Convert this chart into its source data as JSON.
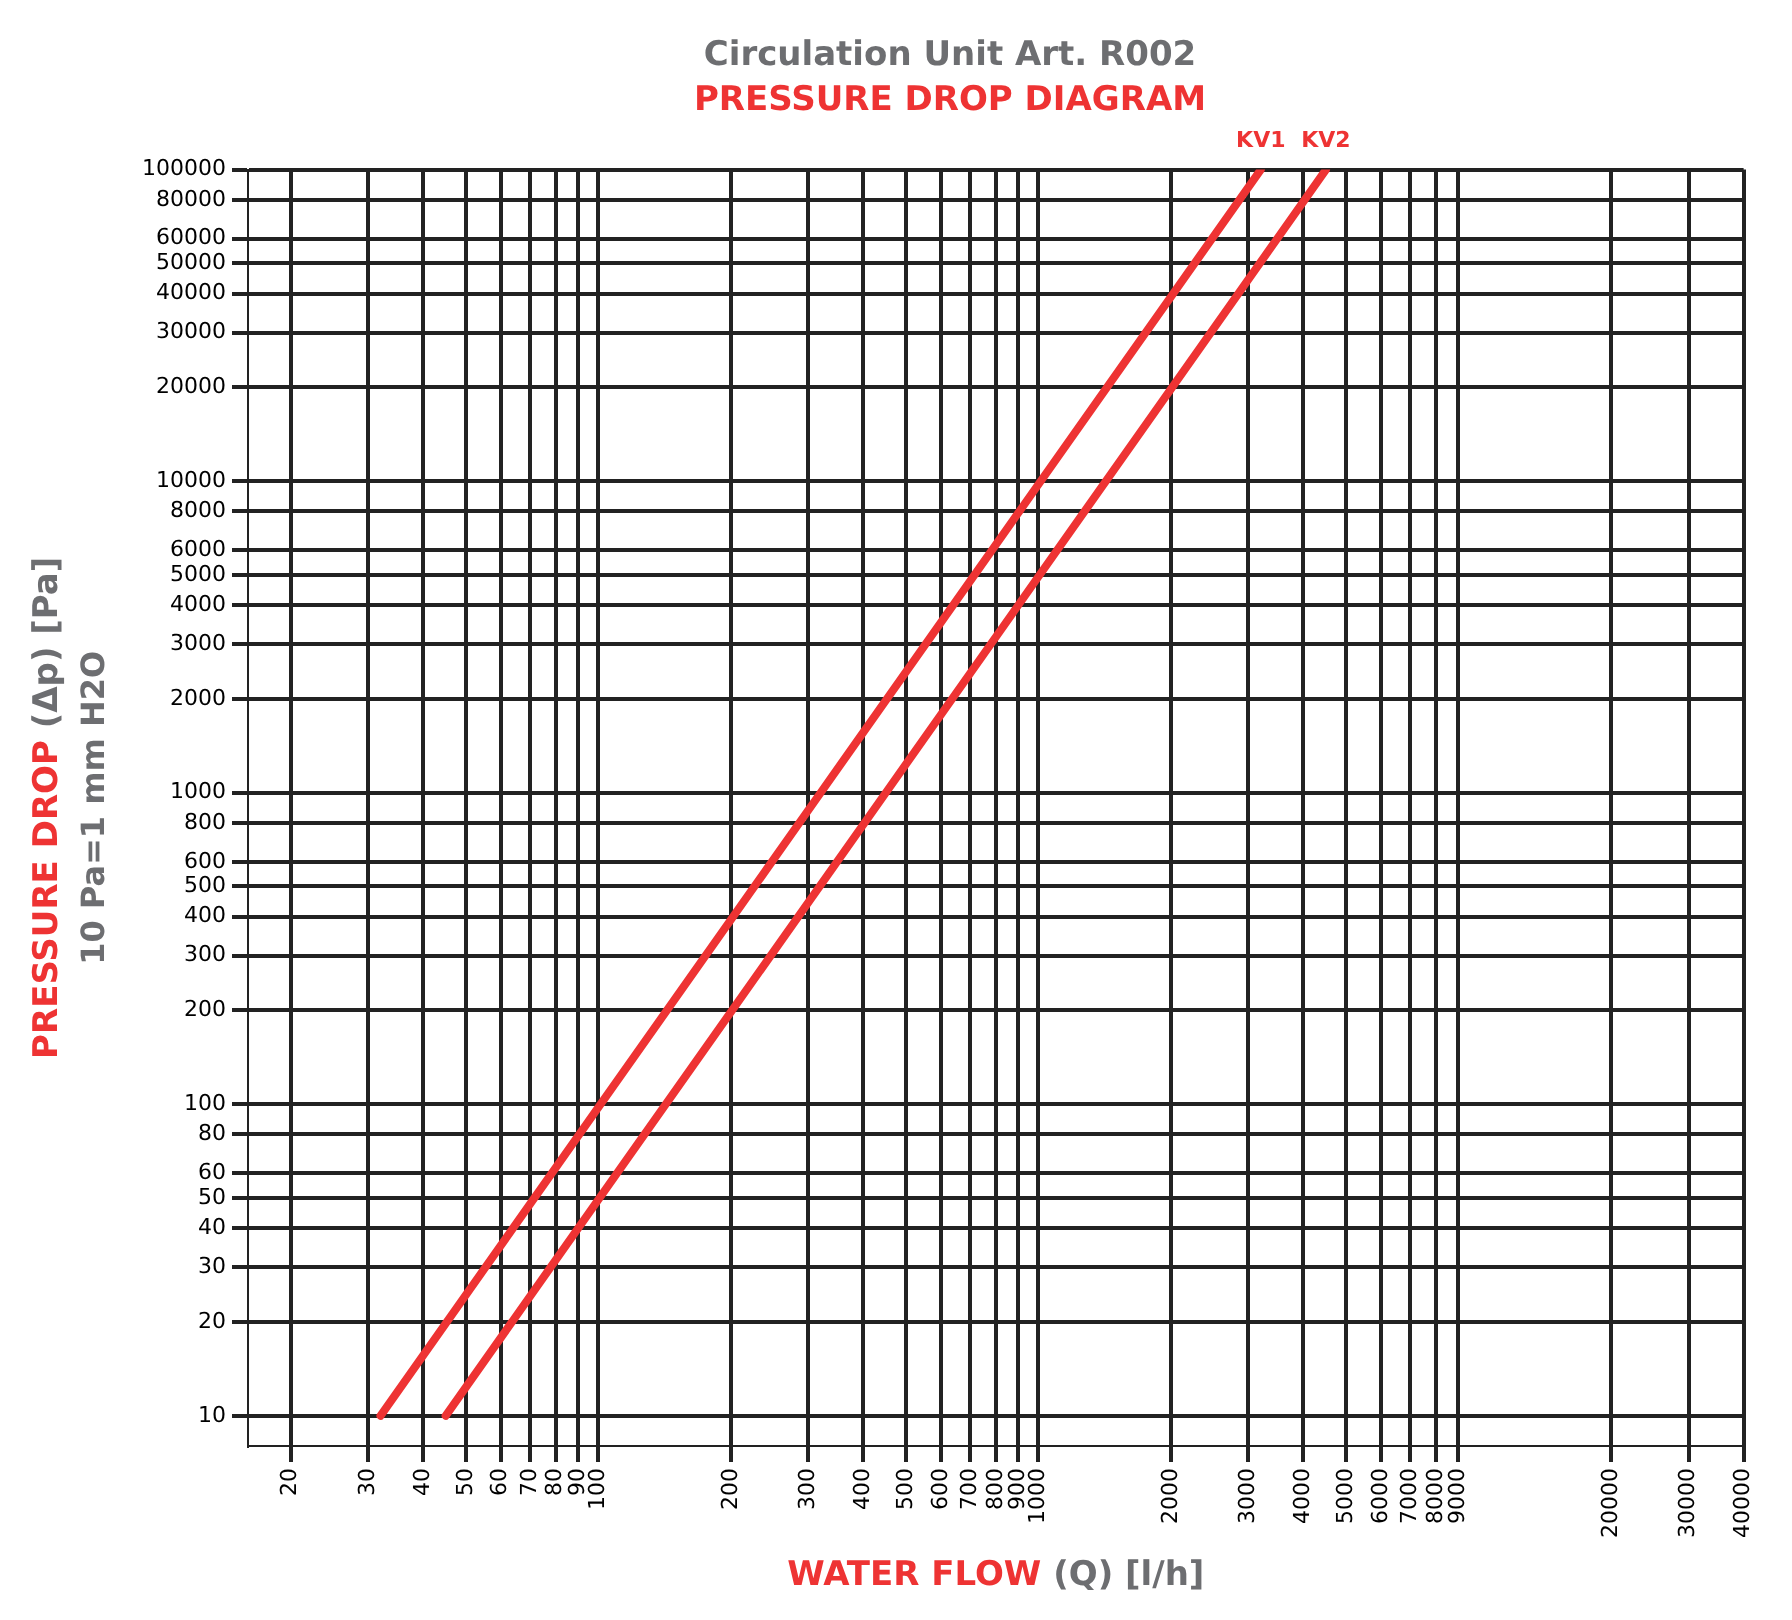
{
  "chart_data": {
    "type": "line",
    "title": "Circulation Unit Art. R002",
    "subtitle": "PRESSURE DROP DIAGRAM",
    "xlabel": "WATER FLOW (Q) [l/h]",
    "ylabel": "PRESSURE DROP (Δp) [Pa]",
    "annotations": [
      "10 Pa=1 mm H2O"
    ],
    "log": "xy",
    "xlim": [
      16,
      40000
    ],
    "ylim": [
      8,
      100000
    ],
    "xticks": [
      20,
      30,
      40,
      50,
      60,
      70,
      80,
      90,
      100,
      200,
      300,
      400,
      500,
      600,
      700,
      800,
      900,
      1000,
      2000,
      3000,
      4000,
      5000,
      6000,
      7000,
      8000,
      9000,
      20000,
      30000,
      40000
    ],
    "yticks": [
      10,
      20,
      30,
      40,
      50,
      60,
      80,
      100,
      200,
      300,
      400,
      500,
      600,
      800,
      1000,
      2000,
      3000,
      4000,
      5000,
      6000,
      8000,
      10000,
      20000,
      30000,
      40000,
      50000,
      60000,
      80000,
      100000
    ],
    "grid": true,
    "legend": false,
    "marker": "none",
    "line_style": "solid",
    "series": [
      {
        "name": "KV1",
        "color": "#ee3333",
        "x": [
          32,
          320,
          3200
        ],
        "values": [
          10,
          1000,
          100000
        ]
      },
      {
        "name": "KV2",
        "color": "#ee3333",
        "x": [
          45,
          450,
          4500
        ],
        "values": [
          10,
          1000,
          100000
        ]
      }
    ]
  }
}
